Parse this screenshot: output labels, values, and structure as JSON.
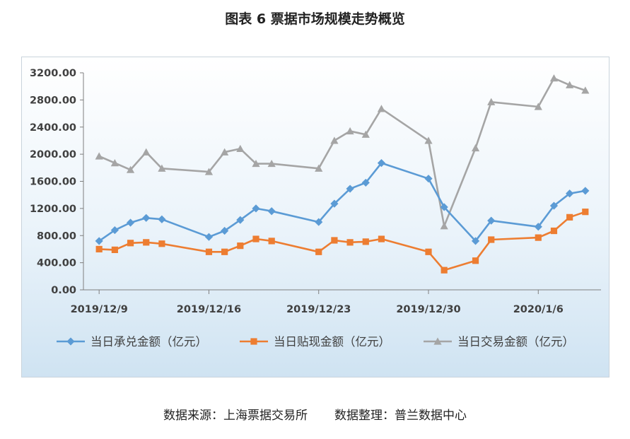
{
  "title": "图表 6  票据市场规模走势概览",
  "source": {
    "left": "数据来源：上海票据交易所",
    "right": "数据整理：普兰数据中心"
  },
  "chart_data": {
    "type": "line",
    "title": "",
    "xlabel": "",
    "ylabel": "",
    "ylim": [
      0,
      3200
    ],
    "yticks": [
      "0.00",
      "400.00",
      "800.00",
      "1200.00",
      "1600.00",
      "2000.00",
      "2400.00",
      "2800.00",
      "3200.00"
    ],
    "xtick_labels": [
      {
        "x": "2019-12-09",
        "label": "2019/12/9"
      },
      {
        "x": "2019-12-16",
        "label": "2019/12/16"
      },
      {
        "x": "2019-12-23",
        "label": "2019/12/23"
      },
      {
        "x": "2019-12-30",
        "label": "2019/12/30"
      },
      {
        "x": "2020-01-06",
        "label": "2020/1/6"
      }
    ],
    "xlim": [
      "2019-12-08",
      "2020-01-10"
    ],
    "legend_position": "bottom",
    "grid": false,
    "x": [
      "2019-12-09",
      "2019-12-10",
      "2019-12-11",
      "2019-12-12",
      "2019-12-13",
      "2019-12-16",
      "2019-12-17",
      "2019-12-18",
      "2019-12-19",
      "2019-12-20",
      "2019-12-23",
      "2019-12-24",
      "2019-12-25",
      "2019-12-26",
      "2019-12-27",
      "2019-12-30",
      "2019-12-31",
      "2020-01-02",
      "2020-01-03",
      "2020-01-06",
      "2020-01-07",
      "2020-01-08",
      "2020-01-09"
    ],
    "series": [
      {
        "name": "当日承兑金额（亿元）",
        "color": "#5b9bd5",
        "marker": "diamond",
        "values": [
          720,
          880,
          990,
          1060,
          1040,
          780,
          870,
          1030,
          1200,
          1160,
          1000,
          1270,
          1490,
          1580,
          1870,
          1640,
          1220,
          720,
          1020,
          930,
          1240,
          1420,
          1460
        ]
      },
      {
        "name": "当日贴现金额（亿元）",
        "color": "#ed7d31",
        "marker": "square",
        "values": [
          600,
          590,
          690,
          700,
          680,
          560,
          560,
          650,
          750,
          720,
          560,
          730,
          700,
          710,
          750,
          560,
          290,
          430,
          740,
          770,
          870,
          1070,
          1150
        ]
      },
      {
        "name": "当日交易金额（亿元）",
        "color": "#a5a5a5",
        "marker": "triangle",
        "values": [
          1970,
          1870,
          1770,
          2030,
          1790,
          1740,
          2030,
          2080,
          1860,
          1860,
          1790,
          2200,
          2340,
          2290,
          2670,
          2200,
          940,
          2090,
          2770,
          2700,
          3120,
          3020,
          2940
        ]
      }
    ]
  }
}
